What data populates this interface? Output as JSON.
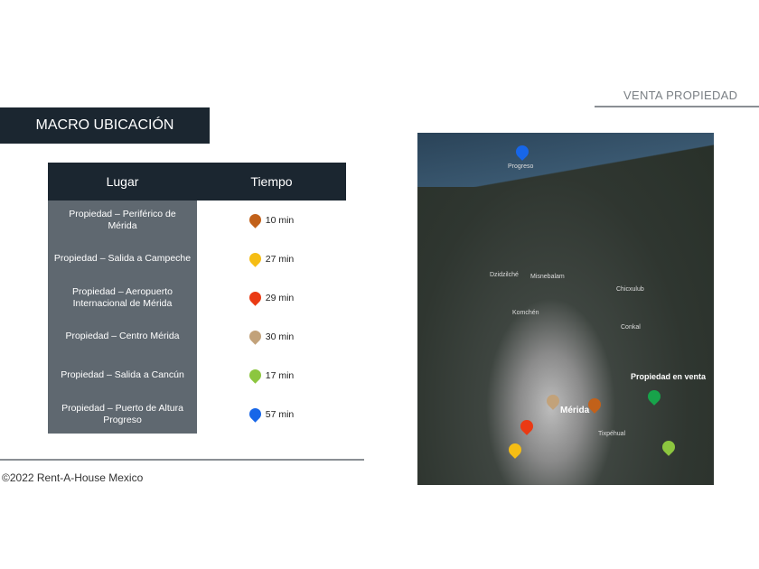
{
  "header": {
    "section": "VENTA PROPIEDAD",
    "title": "MACRO UBICACIÓN"
  },
  "table": {
    "headers": [
      "Lugar",
      "Tiempo"
    ],
    "rows": [
      {
        "lugar": "Propiedad – Periférico de Mérida",
        "tiempo": "10 min",
        "color": "#c2611a"
      },
      {
        "lugar": "Propiedad – Salida a Campeche",
        "tiempo": "27 min",
        "color": "#f5bd14"
      },
      {
        "lugar": "Propiedad – Aeropuerto Internacional de Mérida",
        "tiempo": "29 min",
        "color": "#ea3a14"
      },
      {
        "lugar": "Propiedad – Centro Mérida",
        "tiempo": "30 min",
        "color": "#c2a27a"
      },
      {
        "lugar": "Propiedad – Salida a Cancún",
        "tiempo": "17 min",
        "color": "#8cc63f"
      },
      {
        "lugar": "Propiedad – Puerto de Altura Progreso",
        "tiempo": "57 min",
        "color": "#1766e8"
      }
    ]
  },
  "map": {
    "labels": {
      "progreso": "Progreso",
      "merida": "Mérida",
      "chicxulub": "Chicxulub",
      "misnebalam": "Misnebalam",
      "dzidzilche": "Dzidzilché",
      "komchen": "Komchén",
      "conkal": "Conkal",
      "tixkokob": "Tixpéhual",
      "propiedad": "Propiedad en venta"
    },
    "property_color": "#17a34a"
  },
  "footer": "©2022 Rent-A-House Mexico"
}
